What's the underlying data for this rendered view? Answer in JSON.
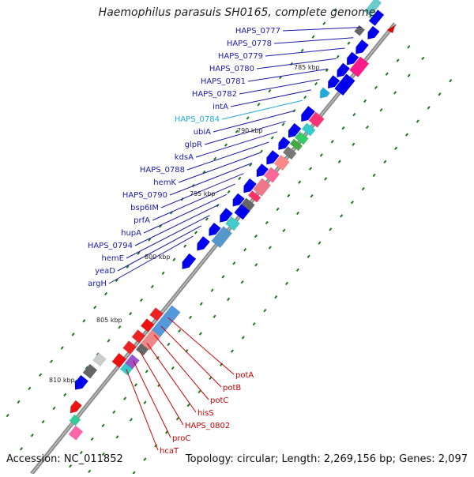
{
  "title": "Haemophilus parasuis SH0165, complete genome",
  "footer": {
    "accession": "Accession: NC_011852",
    "summary": "Topology: circular; Length: 2,269,156 bp; Genes: 2,097"
  },
  "kbp_labels": [
    "785 kbp",
    "790 kbp",
    "795 kbp",
    "800 kbp",
    "805 kbp",
    "810 kbp"
  ],
  "blue_genes": [
    {
      "name": "HAPS_0777",
      "color": "#1a1aa6"
    },
    {
      "name": "HAPS_0778",
      "color": "#1a1aa6"
    },
    {
      "name": "HAPS_0779",
      "color": "#1a1aa6"
    },
    {
      "name": "HAPS_0780",
      "color": "#1a1aa6"
    },
    {
      "name": "HAPS_0781",
      "color": "#1a1aa6"
    },
    {
      "name": "HAPS_0782",
      "color": "#1a1aa6"
    },
    {
      "name": "intA",
      "color": "#1a1aa6"
    },
    {
      "name": "HAPS_0784",
      "color": "#22aadd"
    },
    {
      "name": "ubiA",
      "color": "#1a1aa6"
    },
    {
      "name": "glpR",
      "color": "#1a1aa6"
    },
    {
      "name": "kdsA",
      "color": "#1a1aa6"
    },
    {
      "name": "HAPS_0788",
      "color": "#1a1aa6"
    },
    {
      "name": "hemK",
      "color": "#1a1aa6"
    },
    {
      "name": "HAPS_0790",
      "color": "#1a1aa6"
    },
    {
      "name": "bsp6IM",
      "color": "#1a1aa6"
    },
    {
      "name": "prfA",
      "color": "#1a1aa6"
    },
    {
      "name": "hupA",
      "color": "#1a1aa6"
    },
    {
      "name": "HAPS_0794",
      "color": "#1a1aa6"
    },
    {
      "name": "hemE",
      "color": "#1a1aa6"
    },
    {
      "name": "yeaD",
      "color": "#1a1aa6"
    },
    {
      "name": "argH",
      "color": "#1a1aa6"
    }
  ],
  "red_genes": [
    {
      "name": "potA"
    },
    {
      "name": "potB"
    },
    {
      "name": "potC"
    },
    {
      "name": "hisS"
    },
    {
      "name": "HAPS_0802"
    },
    {
      "name": "proC"
    },
    {
      "name": "hcaT"
    }
  ],
  "colors": {
    "forward_cds": "#0000ee",
    "reverse_cds": "#ee0000",
    "gene_label_blue": "#1a1aa6",
    "gene_label_red": "#cc0000",
    "backbone": "#777777",
    "tick": "#1a7a1a"
  }
}
